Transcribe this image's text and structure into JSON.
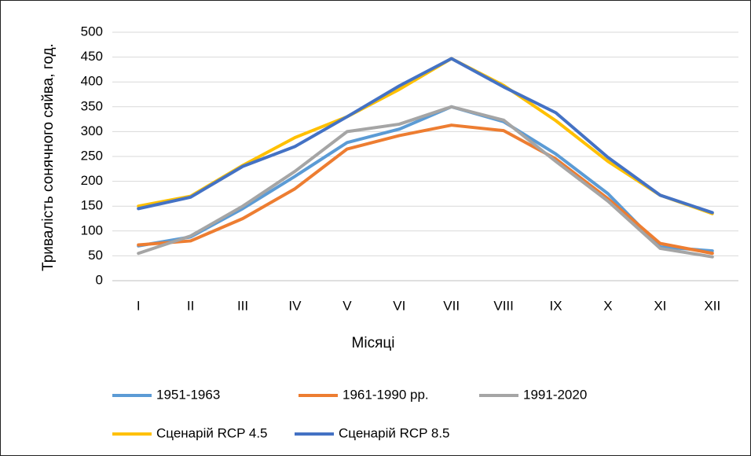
{
  "chart_data": {
    "type": "line",
    "xlabel": "Місяці",
    "ylabel": "Тривалість сонячного сяйва, год.",
    "categories": [
      "I",
      "II",
      "III",
      "IV",
      "V",
      "VI",
      "VII",
      "VIII",
      "IX",
      "X",
      "XI",
      "XII"
    ],
    "series": [
      {
        "name": "1951-1963",
        "color": "#5b9bd5",
        "values": [
          70,
          88,
          145,
          210,
          278,
          305,
          350,
          320,
          255,
          175,
          68,
          60
        ]
      },
      {
        "name": "1961-1990 рр.",
        "color": "#ed7d31",
        "values": [
          72,
          80,
          125,
          185,
          265,
          292,
          313,
          302,
          245,
          165,
          75,
          55
        ]
      },
      {
        "name": "1991-2020",
        "color": "#a5a5a5",
        "values": [
          55,
          90,
          150,
          220,
          300,
          315,
          350,
          323,
          240,
          160,
          65,
          48
        ]
      },
      {
        "name": "Сценарій RCP 4.5",
        "color": "#ffc000",
        "values": [
          150,
          170,
          232,
          288,
          330,
          385,
          447,
          393,
          322,
          240,
          172,
          135
        ]
      },
      {
        "name": "Сценарій RCP 8.5",
        "color": "#4472c4",
        "values": [
          145,
          168,
          230,
          270,
          330,
          392,
          447,
          390,
          338,
          248,
          172,
          137
        ]
      }
    ],
    "ylim": [
      0,
      500
    ],
    "yticks": [
      0,
      50,
      100,
      150,
      200,
      250,
      300,
      350,
      400,
      450,
      500
    ],
    "grid": true,
    "legend": "bottom"
  }
}
